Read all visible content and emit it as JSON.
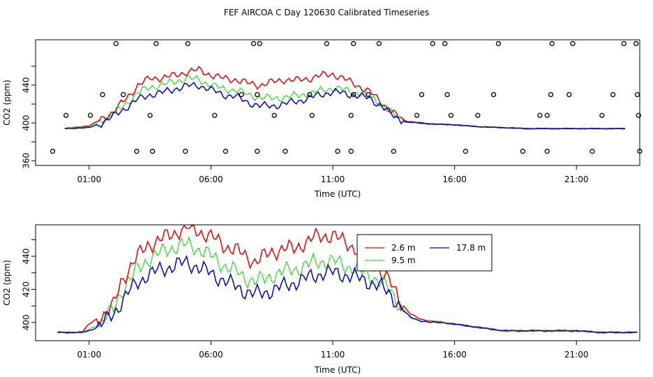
{
  "title": "FEF AIRCOA C  Day 120630  Calibrated Timeseries",
  "colors": {
    "s26": "#ee0000",
    "s95": "#00cc00",
    "s178": "#0000cc",
    "axis": "#000000"
  },
  "chart_data": [
    {
      "type": "line",
      "xlabel": "Time (UTC)",
      "ylabel": "CO2 (ppm)",
      "xlim": [
        -1.2,
        23.6
      ],
      "ylim": [
        355,
        488
      ],
      "xticks": [
        1,
        6,
        11,
        16,
        21
      ],
      "xtick_labels": [
        "01:00",
        "06:00",
        "11:00",
        "16:00",
        "21:00"
      ],
      "yticks": [
        360,
        380,
        400,
        420,
        440,
        460
      ],
      "ytick_labels": [
        "360",
        "",
        "400",
        "",
        "440",
        ""
      ],
      "series": [
        {
          "name": "2.6 m",
          "color_key": "s26",
          "times": [
            0.0,
            1.0,
            1.5,
            2.0,
            2.5,
            3.0,
            3.5,
            4.0,
            4.5,
            5.0,
            5.5,
            6.0,
            6.5,
            7.0,
            7.5,
            8.0,
            8.5,
            9.0,
            9.5,
            10.0,
            10.5,
            11.0,
            11.5,
            12.0,
            12.5,
            13.0,
            13.5,
            14.0,
            15.0,
            16.0,
            17.0,
            18.0,
            19.0,
            20.0,
            21.0,
            22.0,
            23.0
          ],
          "values": [
            394,
            397,
            404,
            412,
            425,
            440,
            447,
            448,
            450,
            454,
            456,
            451,
            447,
            446,
            442,
            440,
            443,
            446,
            445,
            447,
            450,
            452,
            446,
            440,
            433,
            422,
            410,
            402,
            399,
            398,
            396,
            395,
            394,
            394,
            394,
            394,
            394
          ]
        },
        {
          "name": "9.5 m",
          "color_key": "s95",
          "times": [
            0.0,
            1.0,
            1.5,
            2.0,
            2.5,
            3.0,
            3.5,
            4.0,
            4.5,
            5.0,
            5.5,
            6.0,
            6.5,
            7.0,
            7.5,
            8.0,
            8.5,
            9.0,
            9.5,
            10.0,
            10.5,
            11.0,
            11.5,
            12.0,
            12.5,
            13.0,
            13.5,
            14.0,
            15.0,
            16.0,
            17.0,
            18.0,
            19.0,
            20.0,
            21.0,
            22.0,
            23.0
          ],
          "values": [
            394,
            396,
            402,
            410,
            420,
            432,
            438,
            440,
            444,
            447,
            446,
            440,
            436,
            435,
            430,
            427,
            426,
            427,
            429,
            431,
            434,
            437,
            435,
            432,
            428,
            420,
            408,
            401,
            399,
            398,
            396,
            395,
            394,
            394,
            394,
            394,
            394
          ]
        },
        {
          "name": "17.8 m",
          "color_key": "s178",
          "times": [
            0.0,
            1.0,
            1.5,
            2.0,
            2.5,
            3.0,
            3.5,
            4.0,
            4.5,
            5.0,
            5.5,
            6.0,
            6.5,
            7.0,
            7.5,
            8.0,
            8.5,
            9.0,
            9.5,
            10.0,
            10.5,
            11.0,
            11.5,
            12.0,
            12.5,
            13.0,
            13.5,
            14.0,
            15.0,
            16.0,
            17.0,
            18.0,
            19.0,
            20.0,
            21.0,
            22.0,
            23.0
          ],
          "values": [
            394,
            395,
            400,
            407,
            416,
            425,
            430,
            432,
            436,
            439,
            440,
            435,
            430,
            428,
            422,
            418,
            418,
            420,
            423,
            426,
            430,
            433,
            431,
            429,
            426,
            418,
            407,
            401,
            399,
            398,
            396,
            395,
            394,
            394,
            394,
            394,
            394
          ]
        }
      ],
      "calibration_points": {
        "times": [
          -0.5,
          0.05,
          1.05,
          1.55,
          2.1,
          2.4,
          2.95,
          3.5,
          3.6,
          3.75,
          4.95,
          5.05,
          6.15,
          6.6,
          7.25,
          7.75,
          7.9,
          7.9,
          8.0,
          8.6,
          9.05,
          10.05,
          10.15,
          10.75,
          11.2,
          11.75,
          11.75,
          11.85,
          11.85,
          12.45,
          12.9,
          13.5,
          14.45,
          14.65,
          15.1,
          15.6,
          15.7,
          15.85,
          16.45,
          16.95,
          17.6,
          17.8,
          18.8,
          19.5,
          19.8,
          19.8,
          19.95,
          20.0,
          20.7,
          20.85,
          21.65,
          22.05,
          22.5,
          22.95,
          23.45,
          23.5,
          23.55,
          23.6
        ],
        "values": [
          370,
          408,
          408,
          430,
          484,
          430,
          370,
          408,
          370,
          484,
          370,
          484,
          408,
          370,
          430,
          484,
          430,
          370,
          484,
          408,
          370,
          430,
          408,
          484,
          370,
          408,
          370,
          484,
          430,
          430,
          484,
          370,
          408,
          430,
          484,
          484,
          430,
          408,
          370,
          408,
          430,
          484,
          370,
          408,
          408,
          370,
          430,
          484,
          430,
          484,
          370,
          408,
          430,
          484,
          484,
          430,
          408,
          370
        ]
      }
    },
    {
      "type": "line",
      "xlabel": "Time (UTC)",
      "ylabel": "CO2 (ppm)",
      "xlim": [
        -1.2,
        23.6
      ],
      "ylim": [
        389,
        459
      ],
      "xticks": [
        1,
        6,
        11,
        16,
        21
      ],
      "xtick_labels": [
        "01:00",
        "06:00",
        "11:00",
        "16:00",
        "21:00"
      ],
      "yticks": [
        400,
        410,
        420,
        430,
        440,
        450
      ],
      "ytick_labels": [
        "400",
        "",
        "420",
        "",
        "440",
        ""
      ],
      "legend": {
        "position": "top-right"
      },
      "series": [
        {
          "name": "2.6 m",
          "color_key": "s26",
          "times": [
            -0.3,
            0.3,
            0.7,
            1.0,
            1.3,
            1.6,
            2.0,
            2.3,
            2.6,
            3.0,
            3.4,
            3.8,
            4.2,
            4.6,
            5.0,
            5.4,
            5.8,
            6.2,
            6.6,
            7.0,
            7.4,
            7.8,
            8.2,
            8.6,
            9.0,
            9.4,
            9.8,
            10.2,
            10.6,
            11.0,
            11.4,
            11.8,
            12.2,
            12.6,
            13.0,
            13.3,
            13.6,
            13.9,
            14.2,
            14.6,
            15.0,
            15.5,
            16.0,
            16.5,
            17.0,
            17.5,
            18.0,
            19.0,
            20.0,
            21.0,
            22.0,
            22.5,
            23.0,
            23.5
          ],
          "values": [
            394,
            394,
            394,
            399,
            402,
            405,
            410,
            424,
            432,
            440,
            447,
            449,
            452,
            455,
            457,
            456,
            453,
            450,
            446,
            444,
            440,
            437,
            440,
            443,
            445,
            444,
            448,
            451,
            452,
            453,
            449,
            446,
            443,
            438,
            430,
            425,
            418,
            410,
            405,
            402,
            401,
            400,
            399,
            398,
            397,
            396,
            395,
            395,
            395,
            395,
            394,
            394,
            394,
            394
          ]
        },
        {
          "name": "9.5 m",
          "color_key": "s95",
          "times": [
            -0.3,
            0.3,
            0.7,
            1.0,
            1.3,
            1.6,
            2.0,
            2.3,
            2.6,
            3.0,
            3.4,
            3.8,
            4.2,
            4.6,
            5.0,
            5.4,
            5.8,
            6.2,
            6.6,
            7.0,
            7.4,
            7.8,
            8.2,
            8.6,
            9.0,
            9.4,
            9.8,
            10.2,
            10.6,
            11.0,
            11.4,
            11.8,
            12.2,
            12.6,
            13.0,
            13.3,
            13.6,
            13.9,
            14.2,
            14.6,
            15.0,
            15.5,
            16.0,
            16.5,
            17.0,
            17.5,
            18.0,
            19.0,
            20.0,
            21.0,
            22.0,
            22.5,
            23.0,
            23.5
          ],
          "values": [
            394,
            394,
            394,
            396,
            398,
            402,
            408,
            418,
            425,
            432,
            438,
            441,
            444,
            446,
            447,
            445,
            442,
            438,
            434,
            431,
            427,
            425,
            426,
            429,
            431,
            432,
            434,
            436,
            437,
            437,
            435,
            433,
            430,
            428,
            424,
            420,
            414,
            408,
            403,
            401,
            401,
            400,
            399,
            398,
            397,
            396,
            395,
            395,
            395,
            395,
            394,
            394,
            394,
            394
          ]
        },
        {
          "name": "17.8 m",
          "color_key": "s178",
          "times": [
            -0.3,
            0.3,
            0.7,
            1.0,
            1.3,
            1.6,
            2.0,
            2.3,
            2.6,
            3.0,
            3.4,
            3.8,
            4.2,
            4.6,
            5.0,
            5.4,
            5.8,
            6.2,
            6.6,
            7.0,
            7.4,
            7.8,
            8.2,
            8.6,
            9.0,
            9.4,
            9.8,
            10.2,
            10.6,
            11.0,
            11.4,
            11.8,
            12.2,
            12.6,
            13.0,
            13.3,
            13.6,
            13.9,
            14.2,
            14.6,
            15.0,
            15.5,
            16.0,
            16.5,
            17.0,
            17.5,
            18.0,
            19.0,
            20.0,
            21.0,
            22.0,
            22.5,
            23.0,
            23.5
          ],
          "values": [
            394,
            394,
            394,
            395,
            397,
            400,
            405,
            412,
            418,
            424,
            429,
            431,
            433,
            435,
            436,
            434,
            431,
            428,
            425,
            422,
            419,
            417,
            418,
            420,
            422,
            424,
            426,
            428,
            430,
            430,
            429,
            428,
            426,
            424,
            421,
            418,
            413,
            407,
            403,
            401,
            400,
            400,
            399,
            398,
            397,
            396,
            395,
            395,
            395,
            395,
            394,
            394,
            394,
            394
          ]
        }
      ]
    }
  ]
}
